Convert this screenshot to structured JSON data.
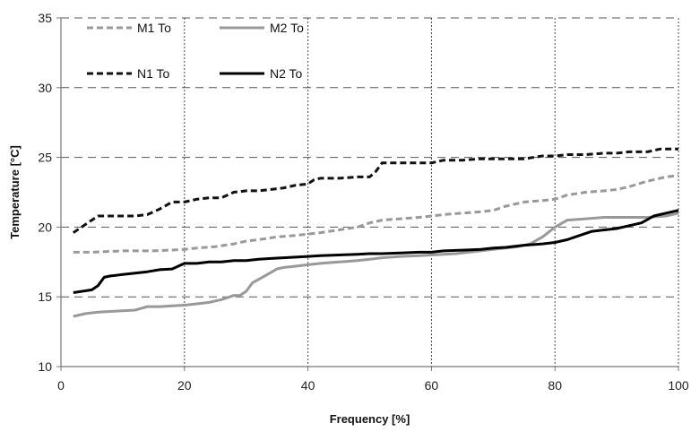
{
  "chart_data": {
    "type": "line",
    "xlabel": "Frequency [%]",
    "ylabel": "Temperature [°C]",
    "xlim": [
      0,
      100
    ],
    "ylim": [
      10,
      35
    ],
    "xticks": [
      0,
      20,
      40,
      60,
      80,
      100
    ],
    "yticks": [
      10,
      15,
      20,
      25,
      30,
      35
    ],
    "legend_position": "top-left",
    "series": [
      {
        "name": "M1 To",
        "color": "#999999",
        "dash": "dashed",
        "x": [
          2,
          5,
          10,
          15,
          20,
          22,
          25,
          28,
          30,
          32,
          35,
          38,
          40,
          42,
          45,
          48,
          50,
          52,
          55,
          58,
          60,
          62,
          65,
          68,
          70,
          72,
          75,
          78,
          80,
          82,
          85,
          88,
          90,
          92,
          95,
          98,
          100
        ],
        "values": [
          18.2,
          18.2,
          18.3,
          18.3,
          18.4,
          18.5,
          18.6,
          18.8,
          19.0,
          19.1,
          19.3,
          19.4,
          19.5,
          19.6,
          19.8,
          20.0,
          20.3,
          20.5,
          20.6,
          20.7,
          20.8,
          20.9,
          21.0,
          21.1,
          21.2,
          21.5,
          21.8,
          21.9,
          22.0,
          22.3,
          22.5,
          22.6,
          22.7,
          22.9,
          23.3,
          23.6,
          23.7
        ]
      },
      {
        "name": "M2 To",
        "color": "#999999",
        "dash": "solid",
        "x": [
          2,
          4,
          6,
          8,
          10,
          12,
          14,
          16,
          18,
          20,
          22,
          24,
          26,
          28,
          29,
          30,
          31,
          33,
          35,
          36,
          38,
          40,
          42,
          45,
          48,
          50,
          52,
          55,
          58,
          60,
          62,
          64,
          66,
          68,
          70,
          72,
          74,
          76,
          78,
          80,
          82,
          85,
          88,
          90,
          92,
          95,
          98,
          100
        ],
        "values": [
          13.6,
          13.8,
          13.9,
          13.95,
          14.0,
          14.05,
          14.3,
          14.3,
          14.35,
          14.4,
          14.5,
          14.6,
          14.8,
          15.1,
          15.1,
          15.4,
          16.0,
          16.5,
          17.0,
          17.1,
          17.2,
          17.3,
          17.4,
          17.5,
          17.6,
          17.7,
          17.8,
          17.9,
          17.95,
          18.0,
          18.05,
          18.1,
          18.2,
          18.3,
          18.4,
          18.5,
          18.6,
          18.8,
          19.3,
          20.0,
          20.5,
          20.6,
          20.7,
          20.7,
          20.7,
          20.7,
          20.8,
          21.0
        ]
      },
      {
        "name": "N1 To",
        "color": "#111111",
        "dash": "dashed",
        "x": [
          2,
          4,
          6,
          8,
          10,
          12,
          14,
          16,
          18,
          20,
          22,
          24,
          26,
          28,
          30,
          32,
          34,
          36,
          38,
          40,
          41,
          42,
          45,
          48,
          50,
          51,
          52,
          53,
          55,
          58,
          60,
          62,
          65,
          68,
          70,
          72,
          75,
          78,
          80,
          82,
          85,
          88,
          90,
          92,
          95,
          97,
          100
        ],
        "values": [
          19.6,
          20.2,
          20.8,
          20.8,
          20.8,
          20.8,
          20.9,
          21.3,
          21.8,
          21.8,
          22.0,
          22.1,
          22.1,
          22.5,
          22.6,
          22.6,
          22.7,
          22.8,
          23.0,
          23.1,
          23.4,
          23.5,
          23.5,
          23.6,
          23.6,
          24.0,
          24.6,
          24.6,
          24.6,
          24.6,
          24.6,
          24.8,
          24.8,
          24.9,
          24.9,
          24.9,
          24.9,
          25.1,
          25.1,
          25.2,
          25.2,
          25.3,
          25.3,
          25.4,
          25.4,
          25.6,
          25.6
        ]
      },
      {
        "name": "N2 To",
        "color": "#000000",
        "dash": "solid",
        "x": [
          2,
          5,
          6,
          7,
          8,
          10,
          12,
          14,
          16,
          18,
          20,
          22,
          24,
          26,
          28,
          30,
          32,
          34,
          36,
          38,
          40,
          42,
          45,
          48,
          50,
          52,
          55,
          58,
          60,
          62,
          65,
          68,
          70,
          72,
          75,
          78,
          80,
          82,
          84,
          86,
          88,
          90,
          92,
          94,
          96,
          98,
          100
        ],
        "values": [
          15.3,
          15.5,
          15.8,
          16.4,
          16.5,
          16.6,
          16.7,
          16.8,
          16.95,
          17.0,
          17.4,
          17.4,
          17.5,
          17.5,
          17.6,
          17.6,
          17.7,
          17.75,
          17.8,
          17.85,
          17.9,
          17.95,
          18.0,
          18.05,
          18.1,
          18.1,
          18.15,
          18.2,
          18.2,
          18.3,
          18.35,
          18.4,
          18.5,
          18.55,
          18.7,
          18.8,
          18.9,
          19.1,
          19.4,
          19.7,
          19.8,
          19.9,
          20.1,
          20.3,
          20.8,
          21.0,
          21.2
        ]
      }
    ]
  }
}
